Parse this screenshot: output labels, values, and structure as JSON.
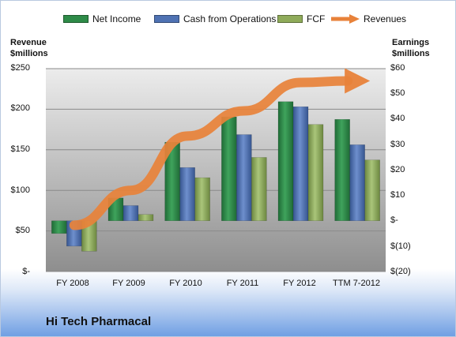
{
  "company": "Hi Tech Pharmacal",
  "left_axis_title": [
    "Revenue",
    "$millions"
  ],
  "right_axis_title": [
    "Earnings",
    "$millions"
  ],
  "left_ticks": [
    "$250",
    "$200",
    "$150",
    "$100",
    "$50",
    "$-"
  ],
  "right_ticks": [
    "$60",
    "$50",
    "$40",
    "$30",
    "$20",
    "$10",
    "$-",
    "$(10)",
    "$(20)"
  ],
  "legend": [
    {
      "label": "Net Income",
      "color": "#2e8b48"
    },
    {
      "label": "Cash from Operations",
      "color": "#4f72b3"
    },
    {
      "label": "FCF",
      "color": "#8fab5a"
    },
    {
      "label": "Revenues",
      "color": "#e8823a"
    }
  ],
  "chart_data": {
    "type": "bar",
    "categories": [
      "FY 2008",
      "FY 2009",
      "FY 2010",
      "FY 2011",
      "FY 2012",
      "TTM 7-2012"
    ],
    "left_axis": {
      "ylim": [
        0,
        250
      ],
      "label": "Revenue $millions"
    },
    "right_axis": {
      "ylim": [
        -20,
        60
      ],
      "label": "Earnings $millions"
    },
    "series": [
      {
        "name": "Net Income",
        "type": "bar",
        "axis": "right",
        "values": [
          -5,
          9,
          31,
          41,
          47,
          40
        ]
      },
      {
        "name": "Cash from Operations",
        "type": "bar",
        "axis": "right",
        "values": [
          -10,
          6,
          21,
          34,
          45,
          30
        ]
      },
      {
        "name": "FCF",
        "type": "bar",
        "axis": "right",
        "values": [
          -12,
          2.5,
          17,
          25,
          38,
          24
        ]
      },
      {
        "name": "Revenues",
        "type": "line",
        "axis": "left",
        "values": [
          57,
          100,
          167,
          198,
          233,
          233
        ]
      }
    ],
    "grid": true,
    "legend_position": "top"
  }
}
